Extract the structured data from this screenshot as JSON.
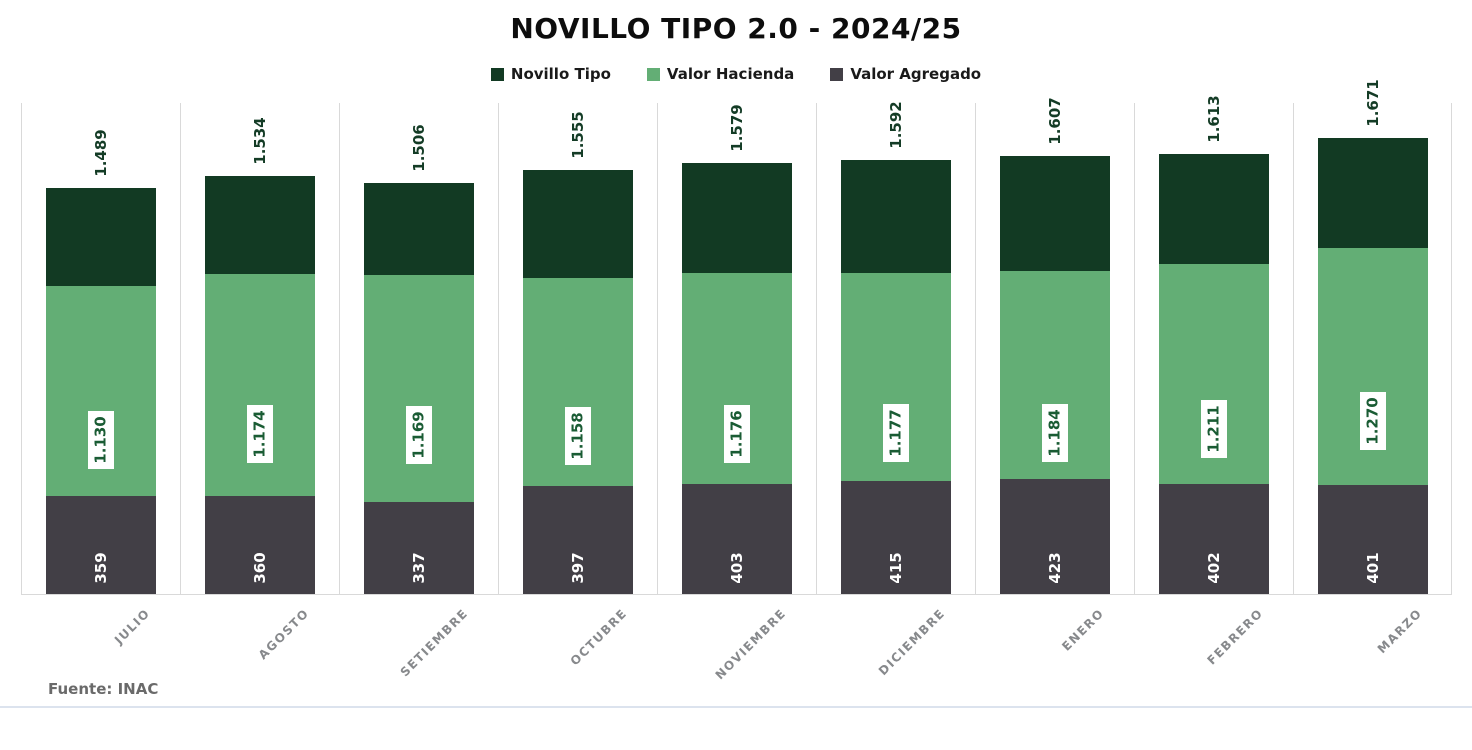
{
  "title": "NOVILLO TIPO 2.0 - 2024/25",
  "footer": {
    "source": "Fuente: INAC"
  },
  "chart_data": {
    "type": "bar",
    "subtype": "overlapped-stacked-columns",
    "title": "NOVILLO TIPO 2.0 - 2024/25",
    "categories": [
      "JULIO",
      "AGOSTO",
      "SETIEMBRE",
      "OCTUBRE",
      "NOVIEMBRE",
      "DICIEMBRE",
      "ENERO",
      "FEBRERO",
      "MARZO"
    ],
    "series": [
      {
        "name": "Novillo Tipo",
        "color": "#123a23",
        "values": [
          1489,
          1534,
          1506,
          1555,
          1579,
          1592,
          1607,
          1613,
          1671
        ],
        "labels": [
          "1.489",
          "1.534",
          "1.506",
          "1.555",
          "1.579",
          "1.592",
          "1.607",
          "1.613",
          "1.671"
        ]
      },
      {
        "name": "Valor Hacienda",
        "color": "#63ae75",
        "values": [
          1130,
          1174,
          1169,
          1158,
          1176,
          1177,
          1184,
          1211,
          1270
        ],
        "labels": [
          "1.130",
          "1.174",
          "1.169",
          "1.158",
          "1.176",
          "1.177",
          "1.184",
          "1.211",
          "1.270"
        ]
      },
      {
        "name": "Valor Agregado",
        "color": "#423f46",
        "values": [
          359,
          360,
          337,
          397,
          403,
          415,
          423,
          402,
          401
        ],
        "labels": [
          "359",
          "360",
          "337",
          "397",
          "403",
          "415",
          "423",
          "402",
          "401"
        ]
      }
    ],
    "ylim": [
      0,
      1800
    ],
    "grid": "vertical category separator lines, light gray",
    "legend_position": "top-center",
    "label_text_colors": {
      "novillo_tipo": "#143c26",
      "valor_hacienda": "#1a5c34",
      "valor_agregado": "#ffffff"
    }
  }
}
